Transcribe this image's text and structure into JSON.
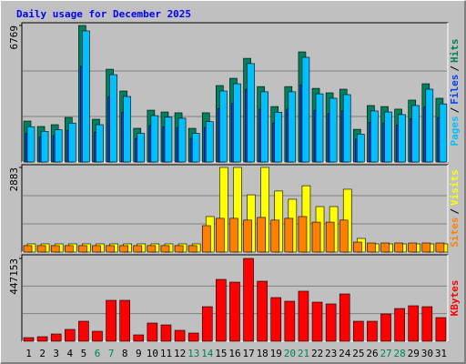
{
  "chart_data": [
    {
      "type": "bar",
      "title": "Daily usage for December 2025",
      "legend_separator": "/",
      "series": [
        {
          "name": "Hits",
          "color": "#00805c",
          "values": [
            2030,
            1760,
            1850,
            2210,
            6769,
            2120,
            4600,
            3520,
            1670,
            2570,
            2480,
            2440,
            1670,
            2440,
            3790,
            4150,
            5140,
            3740,
            2750,
            3740,
            5460,
            3650,
            3430,
            3610,
            1620,
            2800,
            2750,
            2620,
            3070,
            3880,
            3160
          ]
        },
        {
          "name": "Files",
          "color": "#0040ff",
          "values": [
            1420,
            1230,
            1300,
            1550,
            4740,
            1480,
            3220,
            2460,
            1170,
            1800,
            1740,
            1710,
            1170,
            1710,
            2650,
            2900,
            3600,
            2620,
            1930,
            2620,
            3820,
            2560,
            2400,
            2530,
            1130,
            1960,
            1930,
            1830,
            2150,
            2720,
            2210
          ]
        },
        {
          "name": "Pages",
          "color": "#00c0ff",
          "values": [
            1750,
            1520,
            1600,
            1930,
            6500,
            1850,
            4330,
            3250,
            1420,
            2300,
            2220,
            2170,
            1420,
            2000,
            3520,
            3880,
            4880,
            3480,
            2470,
            3480,
            5190,
            3380,
            3160,
            3340,
            1380,
            2530,
            2480,
            2350,
            2800,
            3610,
            2880
          ]
        }
      ],
      "ylim": [
        0,
        6769
      ],
      "yticks": [
        6769
      ]
    },
    {
      "type": "bar",
      "legend_separator": "/",
      "series": [
        {
          "name": "Visits",
          "color": "#ffff00",
          "values": [
            280,
            280,
            280,
            280,
            280,
            280,
            280,
            280,
            280,
            280,
            280,
            280,
            280,
            1210,
            2883,
            2883,
            1950,
            2883,
            2080,
            1800,
            2260,
            1550,
            1550,
            2140,
            465,
            280,
            280,
            280,
            280,
            280,
            280
          ]
        },
        {
          "name": "Sites",
          "color": "#ff8000",
          "values": [
            220,
            220,
            220,
            220,
            220,
            220,
            220,
            220,
            220,
            220,
            220,
            220,
            220,
            900,
            1150,
            1150,
            1090,
            1180,
            1090,
            1150,
            1210,
            1020,
            1020,
            1090,
            340,
            310,
            310,
            310,
            310,
            310,
            310
          ]
        }
      ],
      "ylim": [
        0,
        2883
      ],
      "yticks": [
        2883
      ]
    },
    {
      "type": "bar",
      "categories": [
        "1",
        "2",
        "3",
        "4",
        "5",
        "6",
        "7",
        "8",
        "9",
        "10",
        "11",
        "12",
        "13",
        "14",
        "15",
        "16",
        "17",
        "18",
        "19",
        "20",
        "21",
        "22",
        "23",
        "24",
        "25",
        "26",
        "27",
        "28",
        "29",
        "30",
        "31"
      ],
      "category_colors": [
        "#000000",
        "#000000",
        "#000000",
        "#000000",
        "#000000",
        "#00805c",
        "#00805c",
        "#000000",
        "#000000",
        "#000000",
        "#000000",
        "#000000",
        "#00805c",
        "#00805c",
        "#000000",
        "#000000",
        "#000000",
        "#000000",
        "#000000",
        "#00805c",
        "#00805c",
        "#000000",
        "#000000",
        "#000000",
        "#000000",
        "#000000",
        "#00805c",
        "#00805c",
        "#000000",
        "#000000",
        "#000000"
      ],
      "series": [
        {
          "name": "KBytes",
          "color": "#ff0000",
          "values": [
            19650,
            24560,
            39300,
            63900,
            108100,
            54000,
            221100,
            221100,
            34400,
            98300,
            88400,
            59000,
            44200,
            186700,
            334100,
            319400,
            447153,
            324300,
            235900,
            216200,
            270300,
            211300,
            201500,
            255500,
            108100,
            108100,
            147400,
            176900,
            191600,
            186700,
            127800
          ]
        }
      ],
      "ylim": [
        0,
        447153
      ],
      "yticks": [
        447153
      ]
    }
  ]
}
